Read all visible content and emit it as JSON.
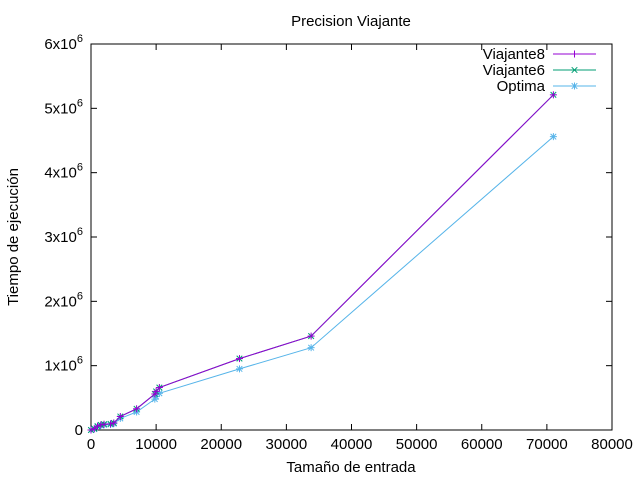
{
  "chart_data": {
    "type": "line",
    "title": "Precision Viajante",
    "xlabel": "Tamaño de entrada",
    "ylabel": "Tiempo de ejecución",
    "xlim": [
      0,
      80000
    ],
    "ylim": [
      0,
      6000000
    ],
    "xticks": [
      0,
      10000,
      20000,
      30000,
      40000,
      50000,
      60000,
      70000,
      80000
    ],
    "xtick_labels": [
      "0",
      "10000",
      "20000",
      "30000",
      "40000",
      "50000",
      "60000",
      "70000",
      "80000"
    ],
    "yticks": [
      0,
      1000000,
      2000000,
      3000000,
      4000000,
      5000000,
      6000000
    ],
    "ytick_labels": [
      {
        "base": "0",
        "exp": ""
      },
      {
        "base": "1x10",
        "exp": "6"
      },
      {
        "base": "2x10",
        "exp": "6"
      },
      {
        "base": "3x10",
        "exp": "6"
      },
      {
        "base": "4x10",
        "exp": "6"
      },
      {
        "base": "5x10",
        "exp": "6"
      },
      {
        "base": "6x10",
        "exp": "6"
      }
    ],
    "grid": false,
    "legend_position": "top-right",
    "series": [
      {
        "name": "Viajante8",
        "color": "#9400d3",
        "marker": "plus",
        "x": [
          0,
          500,
          1000,
          1500,
          2000,
          3000,
          3500,
          4500,
          7000,
          9800,
          10000,
          10500,
          22800,
          33800,
          71000
        ],
        "y": [
          0,
          20000,
          60000,
          80000,
          90000,
          95000,
          110000,
          210000,
          330000,
          560000,
          600000,
          660000,
          1110000,
          1460000,
          5210000
        ]
      },
      {
        "name": "Viajante6",
        "color": "#009e73",
        "marker": "cross",
        "x": [
          0,
          500,
          1000,
          1500,
          2000,
          3000,
          3500,
          4500,
          7000,
          9800,
          10000,
          10500,
          22800,
          33800,
          71000
        ],
        "y": [
          0,
          20000,
          60000,
          80000,
          90000,
          95000,
          110000,
          210000,
          330000,
          560000,
          600000,
          660000,
          1110000,
          1460000,
          5210000
        ]
      },
      {
        "name": "Optima",
        "color": "#56b4e9",
        "marker": "star",
        "x": [
          0,
          500,
          1000,
          1500,
          2000,
          3000,
          3500,
          4500,
          7000,
          9800,
          10000,
          10500,
          22800,
          33800,
          71000
        ],
        "y": [
          0,
          15000,
          50000,
          70000,
          80000,
          85000,
          100000,
          180000,
          280000,
          480000,
          520000,
          570000,
          950000,
          1280000,
          4560000
        ]
      }
    ]
  }
}
